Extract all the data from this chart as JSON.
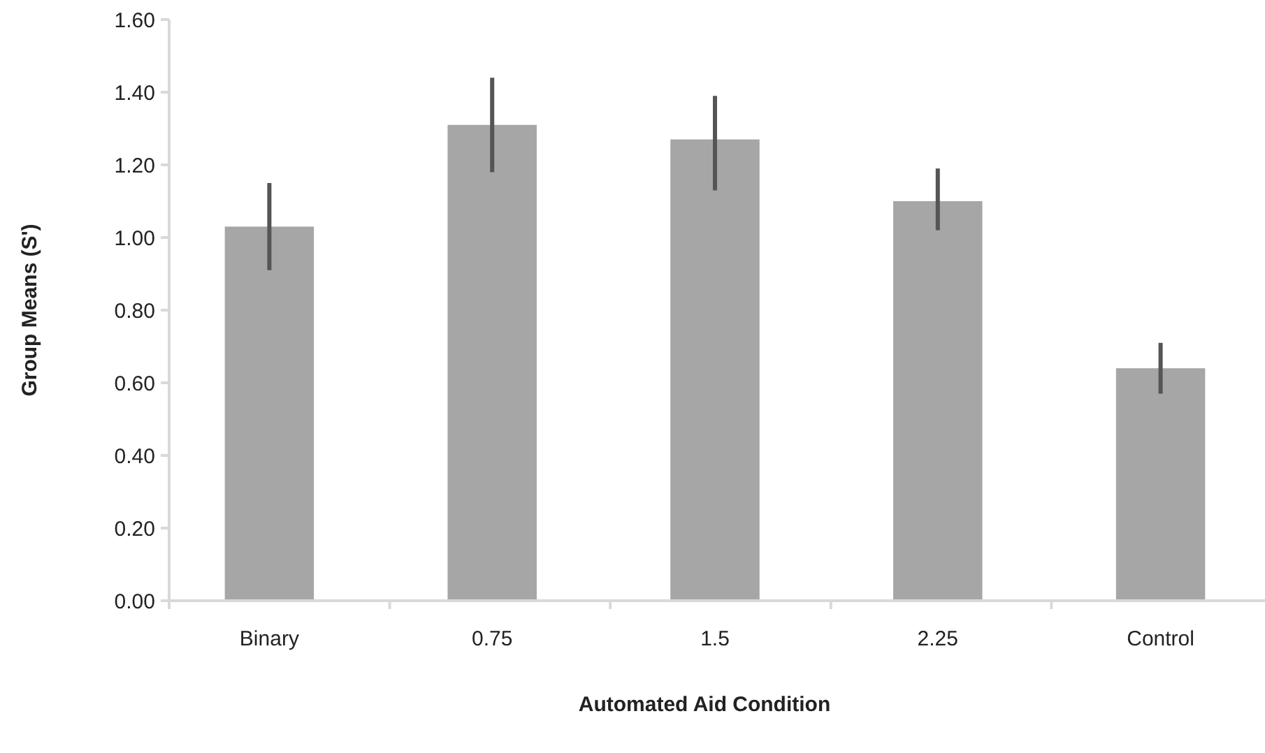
{
  "chart_data": {
    "type": "bar",
    "xlabel": "Automated Aid Condition",
    "ylabel": "Group Means (S')",
    "categories": [
      "Binary",
      "0.75",
      "1.5",
      "2.25",
      "Control"
    ],
    "values": [
      1.03,
      1.31,
      1.27,
      1.1,
      0.64
    ],
    "errors": [
      [
        0.91,
        1.15
      ],
      [
        1.18,
        1.44
      ],
      [
        1.13,
        1.39
      ],
      [
        1.02,
        1.19
      ],
      [
        0.57,
        0.71
      ]
    ],
    "color": "#a6a6a6",
    "ylim": [
      0,
      1.6
    ],
    "yticks": [
      {
        "value": 0,
        "label": "0.00"
      },
      {
        "value": 0.2,
        "label": "0.20"
      },
      {
        "value": 0.4,
        "label": "0.40"
      },
      {
        "value": 0.6,
        "label": "0.60"
      },
      {
        "value": 0.8,
        "label": "0.80"
      },
      {
        "value": 1,
        "label": "1.00"
      },
      {
        "value": 1.2,
        "label": "1.20"
      },
      {
        "value": 1.4,
        "label": "1.40"
      },
      {
        "value": 1.6,
        "label": "1.60"
      }
    ]
  }
}
